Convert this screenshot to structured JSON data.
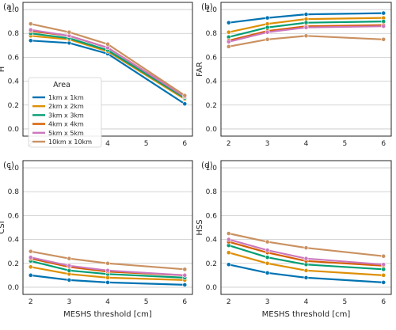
{
  "chart_data": {
    "type": "line",
    "x": [
      2,
      3,
      4,
      6
    ],
    "shared_xlabel": "MESHS threshold [cm]",
    "x_ticks": [
      2,
      3,
      4,
      5,
      6
    ],
    "y_ticks": [
      0.0,
      0.2,
      0.4,
      0.6,
      0.8,
      1.0
    ],
    "ylim": [
      0,
      1.05
    ],
    "grid": "horizontal",
    "legend": {
      "title": "Area",
      "placement": "left-center of panel (a)",
      "entries": [
        "1km x 1km",
        "2km x 2km",
        "3km x 3km",
        "4km x 4km",
        "5km x 5km",
        "10km x 10km"
      ],
      "colors": [
        "#0173b2",
        "#de8f05",
        "#029e73",
        "#d55e00",
        "#cc78bc",
        "#ca9161"
      ]
    },
    "panels": [
      {
        "letter": "(a)",
        "ylabel": "H",
        "xlabel": "",
        "series": [
          {
            "name": "1km x 1km",
            "values": [
              0.74,
              0.72,
              0.63,
              0.21
            ]
          },
          {
            "name": "2km x 2km",
            "values": [
              0.78,
              0.75,
              0.65,
              0.25
            ]
          },
          {
            "name": "3km x 3km",
            "values": [
              0.8,
              0.76,
              0.66,
              0.26
            ]
          },
          {
            "name": "4km x 4km",
            "values": [
              0.82,
              0.78,
              0.68,
              0.27
            ]
          },
          {
            "name": "5km x 5km",
            "values": [
              0.83,
              0.78,
              0.68,
              0.27
            ]
          },
          {
            "name": "10km x 10km",
            "values": [
              0.88,
              0.81,
              0.71,
              0.28
            ]
          }
        ]
      },
      {
        "letter": "(b)",
        "ylabel": "FAR",
        "xlabel": "",
        "series": [
          {
            "name": "1km x 1km",
            "values": [
              0.89,
              0.93,
              0.96,
              0.97
            ]
          },
          {
            "name": "2km x 2km",
            "values": [
              0.81,
              0.88,
              0.92,
              0.93
            ]
          },
          {
            "name": "3km x 3km",
            "values": [
              0.77,
              0.85,
              0.89,
              0.9
            ]
          },
          {
            "name": "4km x 4km",
            "values": [
              0.74,
              0.82,
              0.86,
              0.87
            ]
          },
          {
            "name": "5km x 5km",
            "values": [
              0.73,
              0.81,
              0.85,
              0.86
            ]
          },
          {
            "name": "10km x 10km",
            "values": [
              0.69,
              0.75,
              0.78,
              0.75
            ]
          }
        ]
      },
      {
        "letter": "(c)",
        "ylabel": "CSI",
        "xlabel": "MESHS threshold [cm]",
        "series": [
          {
            "name": "1km x 1km",
            "values": [
              0.1,
              0.06,
              0.04,
              0.02
            ]
          },
          {
            "name": "2km x 2km",
            "values": [
              0.17,
              0.11,
              0.08,
              0.06
            ]
          },
          {
            "name": "3km x 3km",
            "values": [
              0.22,
              0.14,
              0.11,
              0.08
            ]
          },
          {
            "name": "4km x 4km",
            "values": [
              0.24,
              0.17,
              0.13,
              0.1
            ]
          },
          {
            "name": "5km x 5km",
            "values": [
              0.25,
              0.18,
              0.14,
              0.1
            ]
          },
          {
            "name": "10km x 10km",
            "values": [
              0.3,
              0.24,
              0.2,
              0.15
            ]
          }
        ]
      },
      {
        "letter": "(d)",
        "ylabel": "HSS",
        "xlabel": "MESHS threshold [cm]",
        "series": [
          {
            "name": "1km x 1km",
            "values": [
              0.19,
              0.12,
              0.08,
              0.04
            ]
          },
          {
            "name": "2km x 2km",
            "values": [
              0.29,
              0.2,
              0.14,
              0.1
            ]
          },
          {
            "name": "3km x 3km",
            "values": [
              0.35,
              0.25,
              0.19,
              0.15
            ]
          },
          {
            "name": "4km x 4km",
            "values": [
              0.38,
              0.29,
              0.22,
              0.18
            ]
          },
          {
            "name": "5km x 5km",
            "values": [
              0.4,
              0.31,
              0.24,
              0.19
            ]
          },
          {
            "name": "10km x 10km",
            "values": [
              0.45,
              0.38,
              0.33,
              0.26
            ]
          }
        ]
      }
    ]
  }
}
